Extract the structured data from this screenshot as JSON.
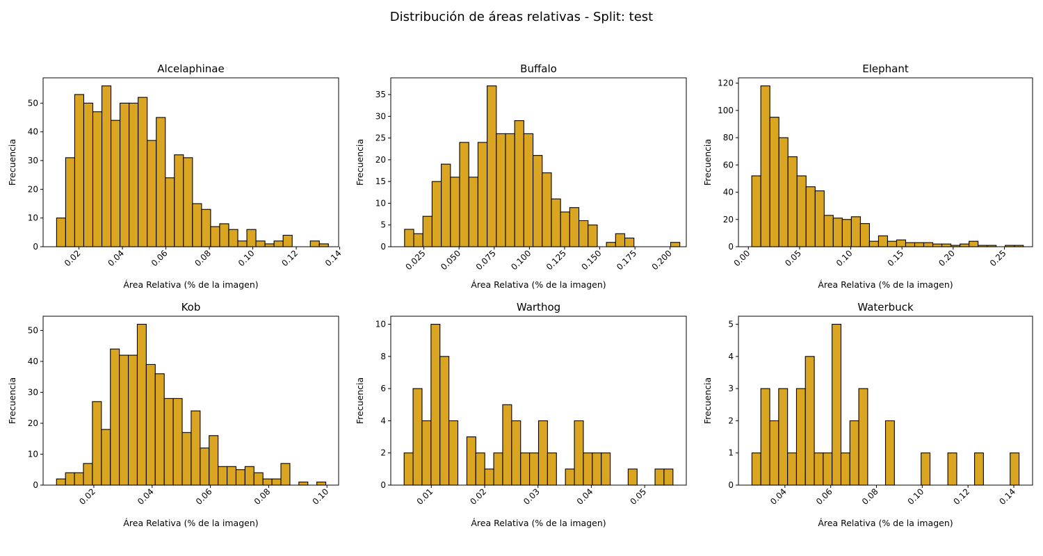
{
  "suptitle": "Distribución de áreas relativas - Split: test",
  "style": {
    "bar_fill": "#DAA520",
    "bar_edge": "#000000"
  },
  "chart_data": [
    {
      "type": "bar",
      "title": "Alcelaphinae",
      "xlabel": "Área Relativa (% de la imagen)",
      "ylabel": "Frecuencia",
      "xlim": [
        0.0035,
        0.1395
      ],
      "ylim": [
        0,
        58.8
      ],
      "xticks": [
        0.02,
        0.04,
        0.06,
        0.08,
        0.1,
        0.12,
        0.14
      ],
      "xtick_labels": [
        "0.02",
        "0.04",
        "0.06",
        "0.08",
        "0.10",
        "0.12",
        "0.14"
      ],
      "yticks": [
        0,
        10,
        20,
        30,
        40,
        50
      ],
      "ytick_labels": [
        "0",
        "10",
        "20",
        "30",
        "40",
        "50"
      ],
      "bin_start": 0.0097,
      "bin_width": 0.00417,
      "values": [
        10,
        31,
        53,
        50,
        47,
        56,
        44,
        50,
        50,
        52,
        37,
        45,
        24,
        32,
        31,
        15,
        13,
        7,
        8,
        6,
        2,
        6,
        2,
        1,
        2,
        4,
        0,
        0,
        2,
        1
      ]
    },
    {
      "type": "bar",
      "title": "Buffalo",
      "xlabel": "Área Relativa (% de la imagen)",
      "ylabel": "Frecuencia",
      "xlim": [
        0.0015,
        0.2115
      ],
      "ylim": [
        0,
        38.85
      ],
      "xticks": [
        0.025,
        0.05,
        0.075,
        0.1,
        0.125,
        0.15,
        0.175,
        0.2
      ],
      "xtick_labels": [
        "0.025",
        "0.050",
        "0.075",
        "0.100",
        "0.125",
        "0.150",
        "0.175",
        "0.200"
      ],
      "yticks": [
        0,
        5,
        10,
        15,
        20,
        25,
        30,
        35
      ],
      "ytick_labels": [
        "0",
        "5",
        "10",
        "15",
        "20",
        "25",
        "30",
        "35"
      ],
      "bin_start": 0.0113,
      "bin_width": 0.00652,
      "values": [
        4,
        3,
        7,
        15,
        19,
        16,
        24,
        16,
        24,
        37,
        26,
        26,
        29,
        26,
        21,
        17,
        11,
        8,
        9,
        6,
        5,
        0,
        1,
        3,
        2,
        0,
        0,
        0,
        0,
        1
      ]
    },
    {
      "type": "bar",
      "title": "Elephant",
      "xlabel": "Área Relativa (% de la imagen)",
      "ylabel": "Frecuencia",
      "xlim": [
        -0.0097,
        0.2775
      ],
      "ylim": [
        0,
        123.9
      ],
      "xticks": [
        0.0,
        0.05,
        0.1,
        0.15,
        0.2,
        0.25
      ],
      "xtick_labels": [
        "0.00",
        "0.05",
        "0.10",
        "0.15",
        "0.20",
        "0.25"
      ],
      "yticks": [
        0,
        20,
        40,
        60,
        80,
        100,
        120
      ],
      "ytick_labels": [
        "0",
        "20",
        "40",
        "60",
        "80",
        "100",
        "120"
      ],
      "bin_start": 0.0033,
      "bin_width": 0.00884,
      "values": [
        52,
        118,
        95,
        80,
        66,
        52,
        44,
        41,
        23,
        21,
        20,
        22,
        17,
        4,
        8,
        4,
        5,
        3,
        3,
        3,
        2,
        2,
        1,
        2,
        4,
        1,
        1,
        0,
        1,
        1
      ]
    },
    {
      "type": "bar",
      "title": "Kob",
      "xlabel": "Área Relativa (% de la imagen)",
      "ylabel": "Frecuencia",
      "xlim": [
        0.0026,
        0.104
      ],
      "ylim": [
        0,
        54.6
      ],
      "xticks": [
        0.02,
        0.04,
        0.06,
        0.08,
        0.1
      ],
      "xtick_labels": [
        "0.02",
        "0.04",
        "0.06",
        "0.08",
        "0.10"
      ],
      "yticks": [
        0,
        10,
        20,
        30,
        40,
        50
      ],
      "ytick_labels": [
        "0",
        "10",
        "20",
        "30",
        "40",
        "50"
      ],
      "bin_start": 0.0072,
      "bin_width": 0.00308,
      "values": [
        2,
        4,
        4,
        7,
        27,
        18,
        44,
        42,
        42,
        52,
        39,
        36,
        28,
        28,
        17,
        24,
        12,
        16,
        6,
        6,
        5,
        6,
        4,
        2,
        2,
        7,
        0,
        1,
        0,
        1
      ]
    },
    {
      "type": "bar",
      "title": "Warthog",
      "xlabel": "Área Relativa (% de la imagen)",
      "ylabel": "Frecuencia",
      "xlim": [
        0.0024,
        0.0578
      ],
      "ylim": [
        0,
        10.5
      ],
      "xticks": [
        0.01,
        0.02,
        0.03,
        0.04,
        0.05
      ],
      "xtick_labels": [
        "0.01",
        "0.02",
        "0.03",
        "0.04",
        "0.05"
      ],
      "yticks": [
        0,
        2,
        4,
        6,
        8,
        10
      ],
      "ytick_labels": [
        "0",
        "2",
        "4",
        "6",
        "8",
        "10"
      ],
      "bin_start": 0.0049,
      "bin_width": 0.00168,
      "values": [
        2,
        6,
        4,
        10,
        8,
        4,
        0,
        3,
        2,
        1,
        2,
        5,
        4,
        2,
        2,
        4,
        2,
        0,
        1,
        4,
        2,
        2,
        2,
        0,
        0,
        1,
        0,
        0,
        1,
        1
      ]
    },
    {
      "type": "bar",
      "title": "Waterbuck",
      "xlabel": "Área Relativa (% de la imagen)",
      "ylabel": "Frecuencia",
      "xlim": [
        0.0197,
        0.1482
      ],
      "ylim": [
        0,
        5.25
      ],
      "xticks": [
        0.04,
        0.06,
        0.08,
        0.1,
        0.12,
        0.14
      ],
      "xtick_labels": [
        "0.04",
        "0.06",
        "0.08",
        "0.10",
        "0.12",
        "0.14"
      ],
      "yticks": [
        0,
        1,
        2,
        3,
        4,
        5
      ],
      "ytick_labels": [
        "0",
        "1",
        "2",
        "3",
        "4",
        "5"
      ],
      "bin_start": 0.0256,
      "bin_width": 0.00389,
      "values": [
        1,
        3,
        2,
        3,
        1,
        3,
        4,
        1,
        1,
        5,
        1,
        2,
        3,
        0,
        0,
        2,
        0,
        0,
        0,
        1,
        0,
        0,
        1,
        0,
        0,
        1,
        0,
        0,
        0,
        1
      ]
    }
  ]
}
